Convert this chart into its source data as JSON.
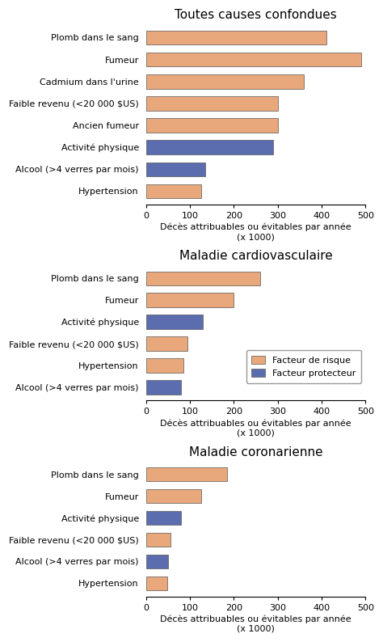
{
  "charts": [
    {
      "title": "Toutes causes confondues",
      "categories": [
        "Plomb dans le sang",
        "Fumeur",
        "Cadmium dans l'urine",
        "Faible revenu (<20 000 $US)",
        "Ancien fumeur",
        "Activité physique",
        "Alcool (>4 verres par mois)",
        "Hypertension"
      ],
      "values": [
        410,
        490,
        360,
        300,
        300,
        290,
        135,
        125
      ],
      "colors": [
        "#E8A87C",
        "#E8A87C",
        "#E8A87C",
        "#E8A87C",
        "#E8A87C",
        "#5B6DAE",
        "#5B6DAE",
        "#E8A87C"
      ]
    },
    {
      "title": "Maladie cardiovasculaire",
      "categories": [
        "Plomb dans le sang",
        "Fumeur",
        "Activité physique",
        "Faible revenu (<20 000 $US)",
        "Hypertension",
        "Alcool (>4 verres par mois)"
      ],
      "values": [
        260,
        200,
        130,
        95,
        85,
        80
      ],
      "colors": [
        "#E8A87C",
        "#E8A87C",
        "#5B6DAE",
        "#E8A87C",
        "#E8A87C",
        "#5B6DAE"
      ]
    },
    {
      "title": "Maladie coronarienne",
      "categories": [
        "Plomb dans le sang",
        "Fumeur",
        "Activité physique",
        "Faible revenu (<20 000 $US)",
        "Alcool (>4 verres par mois)",
        "Hypertension"
      ],
      "values": [
        185,
        125,
        80,
        55,
        50,
        48
      ],
      "colors": [
        "#E8A87C",
        "#E8A87C",
        "#5B6DAE",
        "#E8A87C",
        "#5B6DAE",
        "#E8A87C"
      ]
    }
  ],
  "xlabel": "Décès attribuables ou évitables par année\n(x 1000)",
  "xlim": [
    0,
    500
  ],
  "xticks": [
    0,
    100,
    200,
    300,
    400,
    500
  ],
  "risk_color": "#E8A87C",
  "protective_color": "#5B6DAE",
  "legend_labels": [
    "Facteur de risque",
    "Facteur protecteur"
  ],
  "background_color": "#FFFFFF",
  "bar_edge_color": "#555555",
  "bar_height": 0.65
}
